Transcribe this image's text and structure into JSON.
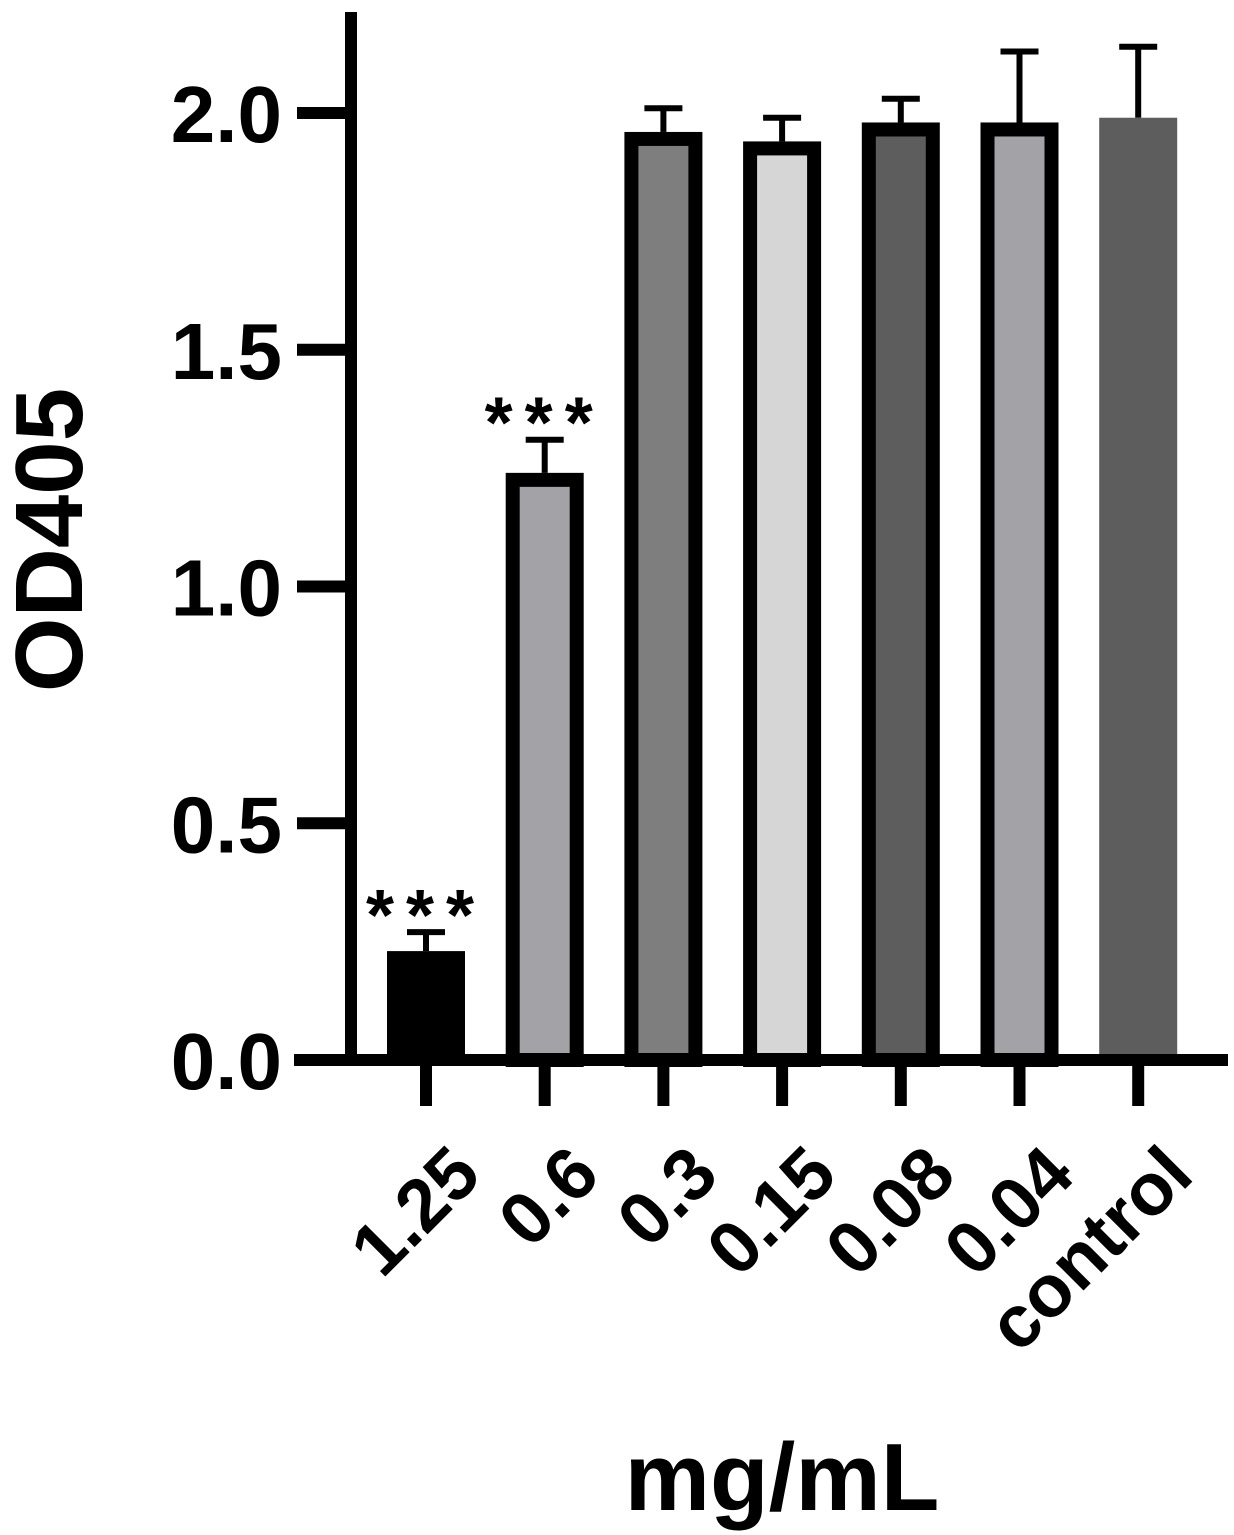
{
  "chart_data": {
    "type": "bar",
    "title": "",
    "xlabel": "mg/mL",
    "ylabel": "OD405",
    "ylim": [
      0,
      2.0
    ],
    "yticks": [
      "0.0",
      "0.5",
      "1.0",
      "1.5",
      "2.0"
    ],
    "categories": [
      "1.25",
      "0.6",
      "0.3",
      "0.15",
      "0.08",
      "0.04",
      "control"
    ],
    "values": [
      0.23,
      1.24,
      1.96,
      1.94,
      1.98,
      1.98,
      1.99
    ],
    "errors": [
      0.04,
      0.07,
      0.05,
      0.05,
      0.05,
      0.15,
      0.15
    ],
    "fill_colors": [
      "#000000",
      "#a3a2a7",
      "#7e7e7e",
      "#d6d6d6",
      "#5d5d5d",
      "#a3a2a7",
      "#5d5d5d"
    ],
    "outlined": [
      false,
      true,
      true,
      true,
      true,
      true,
      false
    ],
    "annotations": [
      {
        "category": "1.25",
        "text": "***"
      },
      {
        "category": "0.6",
        "text": "***"
      }
    ],
    "grid": false,
    "legend": "none"
  }
}
